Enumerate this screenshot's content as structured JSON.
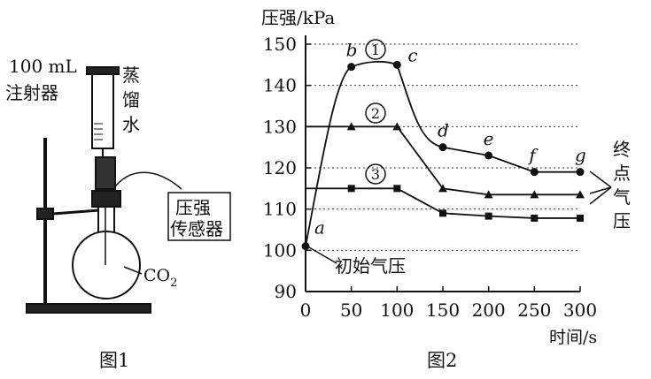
{
  "figure1": {
    "caption": "图1",
    "syringe_label": [
      "100 mL",
      "注射器"
    ],
    "water_label": [
      "蒸",
      "馏",
      "水"
    ],
    "sensor_label": [
      "压强",
      "传感器"
    ],
    "gas_label": "CO",
    "gas_subscript": "2"
  },
  "figure2": {
    "caption": "图2",
    "initial_pressure_label": "初始气压",
    "final_pressure_label": [
      "终",
      "点",
      "气",
      "压"
    ]
  },
  "chart_data": {
    "type": "line",
    "ylabel": "压强/kPa",
    "xlabel": "时间/s",
    "xlim": [
      0,
      300
    ],
    "ylim": [
      90,
      150
    ],
    "xticks": [
      0,
      50,
      100,
      150,
      200,
      250,
      300
    ],
    "yticks": [
      90,
      100,
      110,
      120,
      130,
      140,
      150
    ],
    "grid": "horizontal dotted",
    "series": [
      {
        "name": "①",
        "marker": "circle",
        "x": [
          0,
          50,
          100,
          150,
          200,
          250,
          300
        ],
        "y": [
          101,
          144.5,
          145,
          125,
          123,
          119,
          119
        ],
        "point_labels": [
          "a",
          "b",
          "",
          "d",
          "e",
          "f",
          "g"
        ]
      },
      {
        "name": "②",
        "marker": "triangle",
        "x": [
          0,
          50,
          100,
          150,
          200,
          250,
          300
        ],
        "y": [
          101,
          130,
          130,
          115,
          113.5,
          113.5,
          113.5
        ]
      },
      {
        "name": "③",
        "marker": "square",
        "x": [
          0,
          50,
          100,
          150,
          200,
          250,
          300
        ],
        "y": [
          101,
          115,
          115,
          109,
          108.3,
          107.8,
          107.8
        ]
      }
    ],
    "annotation_c": "c"
  }
}
